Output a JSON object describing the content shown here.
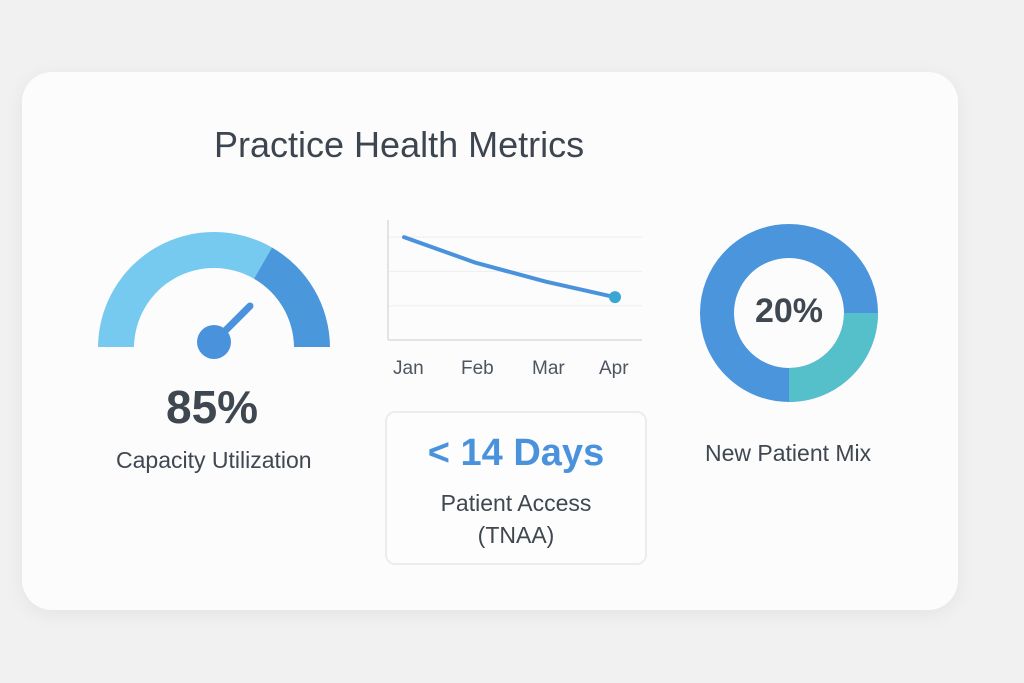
{
  "title": "Practice Health Metrics",
  "gauge": {
    "value_label": "85%",
    "label": "Capacity Utilization",
    "value_pct": 85,
    "colors": {
      "light": "#76c9ef",
      "dark": "#4b97db"
    }
  },
  "chart_data": {
    "type": "line",
    "categories": [
      "Jan",
      "Feb",
      "Mar",
      "Apr"
    ],
    "values": [
      3.0,
      2.25,
      1.7,
      1.25
    ],
    "ylim": [
      0,
      3.5
    ],
    "grid": true,
    "xlabel": "",
    "ylabel": "",
    "color": "#4a93dc"
  },
  "access": {
    "value": "< 14 Days",
    "label_line1": "Patient Access",
    "label_line2": "(TNAA)",
    "color": "#4a93dc"
  },
  "donut": {
    "value_label": "20%",
    "label": "New Patient Mix",
    "value_pct": 20,
    "colors": {
      "main": "#4b95dc",
      "segment": "#55c0c9"
    }
  }
}
